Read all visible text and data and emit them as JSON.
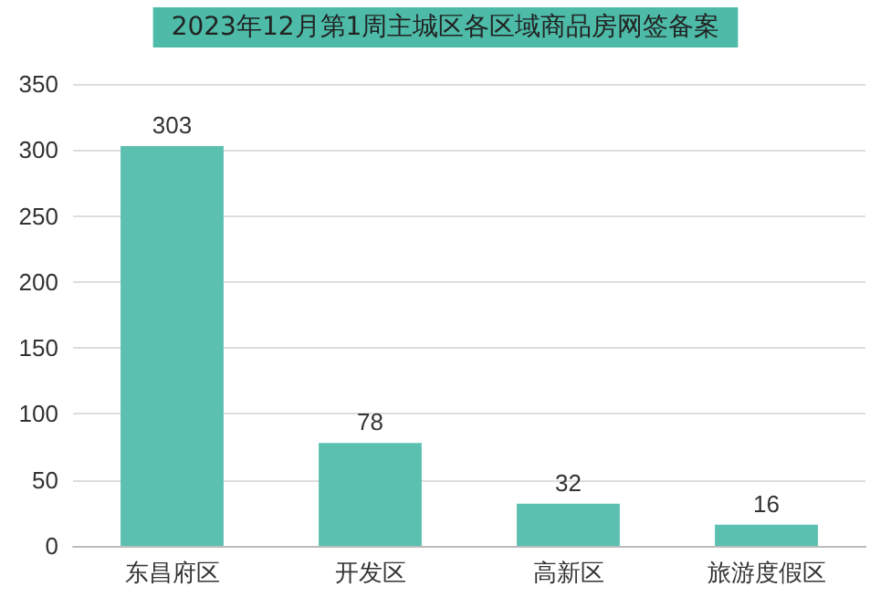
{
  "chart_data": {
    "type": "bar",
    "title": "2023年12月第1周主城区各区域商品房网签备案",
    "categories": [
      "东昌府区",
      "开发区",
      "高新区",
      "旅游度假区"
    ],
    "values": [
      303,
      78,
      32,
      16
    ],
    "color": "#5cc0b0",
    "ylim": [
      0,
      350
    ],
    "yticks": [
      0,
      50,
      100,
      150,
      200,
      250,
      300,
      350
    ],
    "grid": "y",
    "data_labels": true
  }
}
